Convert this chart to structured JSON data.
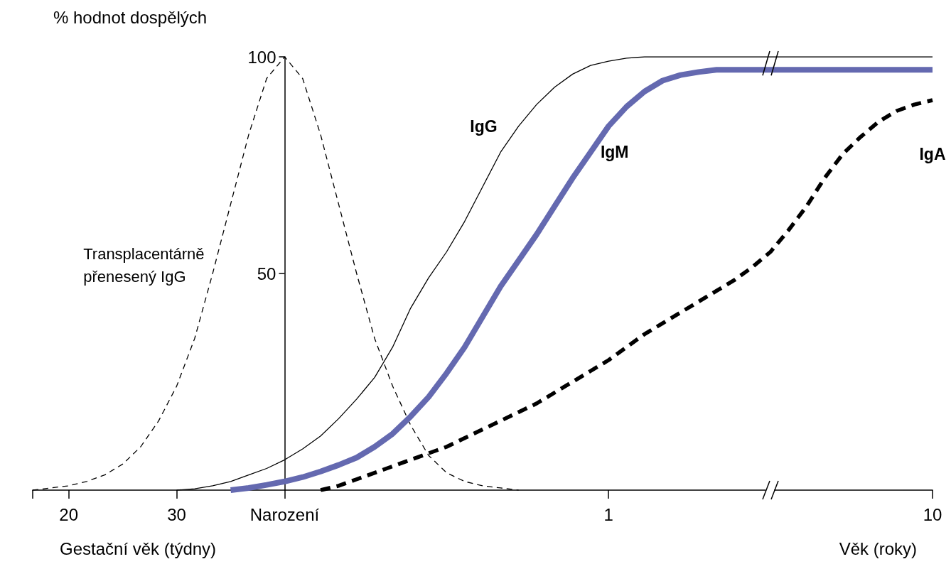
{
  "chart_data": {
    "type": "line",
    "ylabel": "% hodnot dospělých",
    "xlabel": "Gestační věk (týdny)",
    "annotations": [
      "Věk (roky)"
    ],
    "categories": [
      null,
      null,
      "20",
      null,
      null,
      null,
      null,
      null,
      "30",
      null,
      null,
      null,
      null,
      null,
      "Narození",
      null,
      null,
      null,
      null,
      null,
      null,
      null,
      null,
      null,
      null,
      null,
      null,
      null,
      null,
      null,
      null,
      null,
      "1",
      null,
      null,
      null,
      null,
      null,
      null,
      null,
      null,
      null,
      null,
      null,
      null,
      null,
      null,
      null,
      null,
      null,
      "10"
    ],
    "series": [
      {
        "name": "Transplacentárně přenesený IgG",
        "color": "#000000",
        "line_style": "dashed",
        "values": [
          0,
          0.5,
          1,
          2,
          3.5,
          6,
          10,
          16,
          24,
          35,
          50,
          66,
          82,
          95,
          100,
          95,
          82,
          66,
          50,
          35,
          24,
          15,
          8,
          4,
          2,
          1,
          0.5,
          0,
          null,
          null,
          null,
          null,
          null,
          null,
          null,
          null,
          null,
          null,
          null,
          null,
          null,
          null,
          null,
          null,
          null,
          null,
          null,
          null,
          null,
          null,
          null
        ]
      },
      {
        "name": "IgG",
        "color": "#000000",
        "line_style": "solid",
        "values": [
          null,
          null,
          null,
          null,
          null,
          null,
          null,
          null,
          0,
          0.3,
          1,
          2,
          3.5,
          5,
          7,
          9.5,
          12.5,
          16.5,
          21,
          26,
          33,
          42,
          49,
          55,
          62,
          70,
          78,
          84,
          89,
          93,
          96,
          98,
          99,
          99.7,
          100,
          100,
          100,
          100,
          100,
          100,
          100,
          100,
          100,
          100,
          100,
          100,
          100,
          100,
          100,
          100,
          100
        ]
      },
      {
        "name": "IgM",
        "color": "#6469b0",
        "line_style": "solid",
        "values": [
          null,
          null,
          null,
          null,
          null,
          null,
          null,
          null,
          null,
          null,
          null,
          0,
          0.5,
          1.2,
          2,
          3,
          4.3,
          5.8,
          7.5,
          10,
          13,
          17,
          21.5,
          27,
          33,
          40,
          47,
          53,
          59,
          65.5,
          72,
          78,
          84,
          88.5,
          92,
          94.5,
          95.8,
          96.5,
          97,
          97,
          97,
          97,
          97,
          97,
          97,
          97,
          97,
          97,
          97,
          97,
          97
        ]
      },
      {
        "name": "IgA",
        "color": "#000000",
        "line_style": "dashed",
        "values": [
          null,
          null,
          null,
          null,
          null,
          null,
          null,
          null,
          null,
          null,
          null,
          null,
          null,
          null,
          null,
          null,
          0,
          1,
          2.5,
          4,
          5.5,
          7,
          8.5,
          10,
          12,
          14,
          16,
          18,
          20,
          22.5,
          25,
          27.5,
          30,
          33,
          36,
          38.5,
          41,
          43.5,
          46,
          48.5,
          51.5,
          55,
          60,
          65.5,
          72,
          77.5,
          81.5,
          85,
          87.5,
          89,
          90
        ]
      }
    ],
    "ylim": [
      0,
      100
    ],
    "yticks": [
      50,
      100
    ],
    "legend": false,
    "grid": false,
    "marker": "none"
  }
}
